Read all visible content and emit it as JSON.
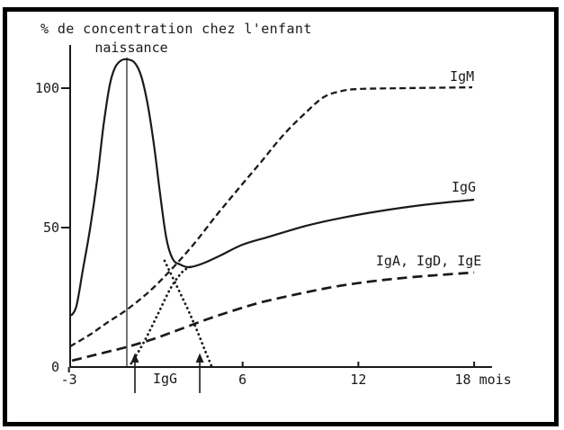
{
  "frame": {
    "border_color": "#000000",
    "background": "#ffffff"
  },
  "chart_data": {
    "type": "line",
    "title": "% de concentration chez l'enfant",
    "x_unit": "mois",
    "x_range_months": [
      -3.2,
      18.9
    ],
    "y_range_percent": [
      0,
      115
    ],
    "grid": false,
    "legend_position": "inline-labels",
    "axis_color": "#1a1a1a",
    "x_ticks": [
      {
        "label": "-3",
        "month": -3,
        "tick_side": "below",
        "dx": 0
      },
      {
        "label": "6",
        "month": 6,
        "tick_side": "above",
        "dx": 0
      },
      {
        "label": "12",
        "month": 12,
        "tick_side": "above",
        "dx": 0
      },
      {
        "label": "18 mois",
        "month": 18,
        "tick_side": "above",
        "dx": 10
      }
    ],
    "y_ticks": [
      {
        "label": "0",
        "value": 0,
        "tick": false
      },
      {
        "label": "50",
        "value": 50,
        "tick": true
      },
      {
        "label": "100",
        "value": 100,
        "tick": true
      }
    ],
    "annotations": {
      "naissance": {
        "label": "naissance",
        "month": 0,
        "line_top_percent": 111
      },
      "igg_bottom": {
        "label": "IgG",
        "arrow_months": [
          0.42,
          3.78
        ]
      }
    },
    "series": [
      {
        "name": "igg-total",
        "label": "IgG",
        "style": "solid",
        "color": "#1a1a1a",
        "label_anchor": {
          "month": 16.83,
          "percent": 62.9
        },
        "points": [
          [
            -2.89,
            18.4
          ],
          [
            -2.61,
            21.9
          ],
          [
            -2.28,
            34.8
          ],
          [
            -1.91,
            49.4
          ],
          [
            -1.54,
            67.1
          ],
          [
            -1.21,
            86.5
          ],
          [
            -0.89,
            101.0
          ],
          [
            -0.61,
            107.4
          ],
          [
            -0.28,
            110.0
          ],
          [
            0.05,
            110.3
          ],
          [
            0.42,
            109.0
          ],
          [
            0.75,
            104.2
          ],
          [
            1.07,
            94.5
          ],
          [
            1.4,
            80.0
          ],
          [
            1.72,
            62.3
          ],
          [
            2.05,
            46.1
          ],
          [
            2.38,
            38.7
          ],
          [
            2.75,
            36.8
          ],
          [
            3.22,
            35.8
          ],
          [
            3.92,
            37.1
          ],
          [
            4.85,
            40.0
          ],
          [
            6.01,
            43.9
          ],
          [
            7.41,
            46.8
          ],
          [
            9.28,
            50.6
          ],
          [
            11.14,
            53.5
          ],
          [
            13.01,
            55.8
          ],
          [
            15.34,
            58.1
          ],
          [
            18.0,
            60.0
          ]
        ]
      },
      {
        "name": "igm",
        "label": "IgM",
        "style": "dashed-short",
        "color": "#1a1a1a",
        "label_anchor": {
          "month": 16.74,
          "percent": 102.6
        },
        "points": [
          [
            -2.94,
            7.4
          ],
          [
            -1.91,
            11.6
          ],
          [
            -0.98,
            16.1
          ],
          [
            -0.05,
            20.3
          ],
          [
            1.12,
            26.8
          ],
          [
            2.28,
            34.8
          ],
          [
            3.45,
            43.9
          ],
          [
            4.62,
            54.2
          ],
          [
            5.78,
            63.9
          ],
          [
            6.95,
            73.5
          ],
          [
            8.11,
            83.2
          ],
          [
            9.28,
            91.3
          ],
          [
            10.21,
            96.8
          ],
          [
            11.14,
            99.0
          ],
          [
            12.08,
            99.7
          ],
          [
            14.41,
            100.0
          ],
          [
            17.9,
            100.3
          ]
        ]
      },
      {
        "name": "iga-igd-ige",
        "label": "IgA, IgD, IgE",
        "style": "dashed-long",
        "color": "#1a1a1a",
        "label_anchor": {
          "month": 12.91,
          "percent": 36.5
        },
        "points": [
          [
            -2.84,
            2.3
          ],
          [
            -1.91,
            3.9
          ],
          [
            -0.98,
            5.5
          ],
          [
            -0.05,
            7.1
          ],
          [
            1.35,
            10.0
          ],
          [
            2.75,
            13.5
          ],
          [
            4.15,
            17.1
          ],
          [
            5.55,
            20.3
          ],
          [
            6.95,
            23.2
          ],
          [
            8.81,
            26.1
          ],
          [
            10.68,
            28.7
          ],
          [
            12.54,
            30.6
          ],
          [
            14.87,
            32.3
          ],
          [
            18.0,
            33.9
          ]
        ]
      },
      {
        "name": "igg-infant-synthesis",
        "label": "",
        "style": "dotted",
        "color": "#1a1a1a",
        "points": [
          [
            0.23,
            1.3
          ],
          [
            0.89,
            9.0
          ],
          [
            1.59,
            18.7
          ],
          [
            2.28,
            28.4
          ],
          [
            2.89,
            34.2
          ],
          [
            3.36,
            36.1
          ]
        ]
      },
      {
        "name": "igg-maternal-decay",
        "label": "",
        "style": "dotted",
        "color": "#1a1a1a",
        "points": [
          [
            1.96,
            38.1
          ],
          [
            2.52,
            30.0
          ],
          [
            3.08,
            21.9
          ],
          [
            3.59,
            13.9
          ],
          [
            4.06,
            5.8
          ],
          [
            4.43,
            -0.3
          ]
        ]
      }
    ]
  }
}
